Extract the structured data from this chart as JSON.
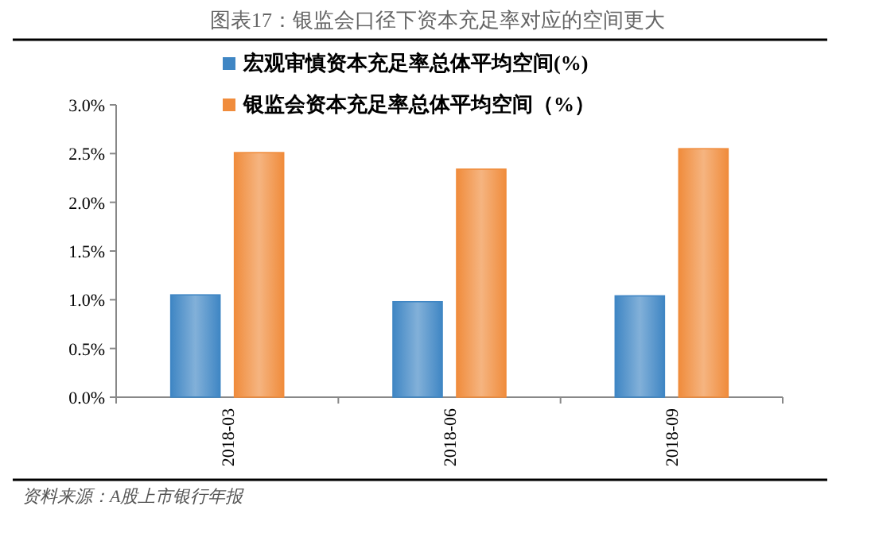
{
  "chart_data": {
    "type": "bar",
    "title": "图表17：银监会口径下资本充足率对应的空间更大",
    "categories": [
      "2018-03",
      "2018-06",
      "2018-09"
    ],
    "series": [
      {
        "name": "宏观审慎资本充足率总体平均空间(%)",
        "color": "#3f86c4",
        "values": [
          1.05,
          0.98,
          1.04
        ]
      },
      {
        "name": "银监会资本充足率总体平均空间（%）",
        "color": "#f08c3c",
        "values": [
          2.51,
          2.34,
          2.55
        ]
      }
    ],
    "ylim": [
      0,
      3
    ],
    "yticks": [
      {
        "value": 0,
        "label": "0.0%"
      },
      {
        "value": 0.5,
        "label": "0.5%"
      },
      {
        "value": 1,
        "label": "1.0%"
      },
      {
        "value": 1.5,
        "label": "1.5%"
      },
      {
        "value": 2,
        "label": "2.0%"
      },
      {
        "value": 2.5,
        "label": "2.5%"
      },
      {
        "value": 3,
        "label": "3.0%"
      }
    ],
    "legend": "top",
    "annotations": [
      "资料来源：A股上市银行年报"
    ]
  }
}
